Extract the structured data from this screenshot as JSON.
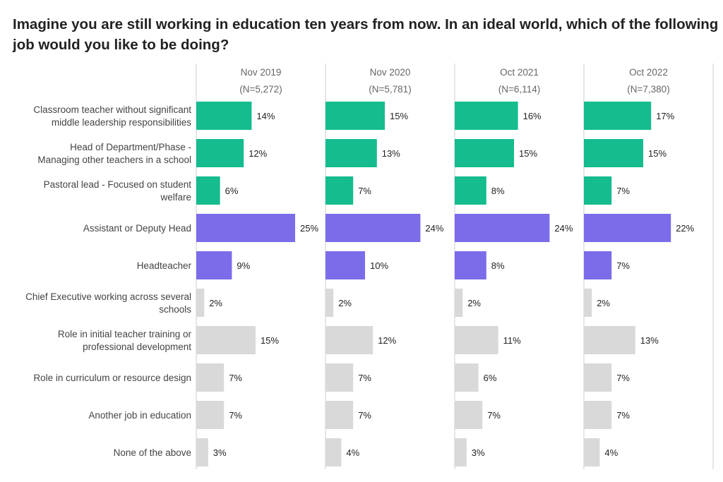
{
  "chart_data": {
    "type": "bar",
    "orientation": "horizontal",
    "title": "Imagine you are still working in education ten years from now. In an ideal world, which of the following job would you like to be doing?",
    "categories": [
      [
        "Classroom teacher without significant",
        "middle leadership responsibilities"
      ],
      [
        "Head of Department/Phase -",
        "Managing other teachers in a school"
      ],
      [
        "Pastoral lead - Focused on student",
        "welfare"
      ],
      [
        "Assistant or Deputy Head"
      ],
      [
        "Headteacher"
      ],
      [
        "Chief Executive working across several",
        "schools"
      ],
      [
        "Role in initial teacher training or",
        "professional development"
      ],
      [
        "Role in curriculum or resource design"
      ],
      [
        "Another job in education"
      ],
      [
        "None of the above"
      ]
    ],
    "category_groups": [
      "green",
      "green",
      "green",
      "purple",
      "purple",
      "gray",
      "gray",
      "gray",
      "gray",
      "gray"
    ],
    "colors": {
      "green": "#14bc8e",
      "purple": "#7b6cea",
      "gray": "#d9d9d9",
      "divider": "#cccccc"
    },
    "series": [
      {
        "name": "Nov 2019",
        "n": "(N=5,272)",
        "values": [
          14,
          12,
          6,
          25,
          9,
          2,
          15,
          7,
          7,
          3
        ]
      },
      {
        "name": "Nov 2020",
        "n": "(N=5,781)",
        "values": [
          15,
          13,
          7,
          24,
          10,
          2,
          12,
          7,
          7,
          4
        ]
      },
      {
        "name": "Oct 2021",
        "n": "(N=6,114)",
        "values": [
          16,
          15,
          8,
          24,
          8,
          2,
          11,
          6,
          7,
          3
        ]
      },
      {
        "name": "Oct 2022",
        "n": "(N=7,380)",
        "values": [
          17,
          15,
          7,
          22,
          7,
          2,
          13,
          7,
          7,
          4
        ]
      }
    ],
    "value_suffix": "%",
    "xlim": [
      0,
      30
    ]
  }
}
